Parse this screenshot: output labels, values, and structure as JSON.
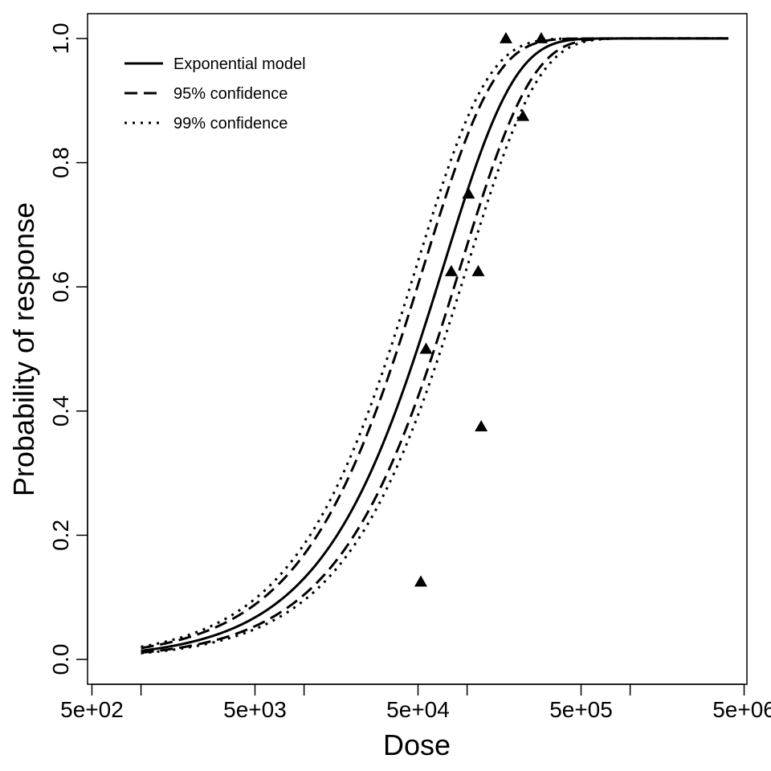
{
  "chart_data": {
    "type": "line",
    "title": "",
    "xlabel": "Dose",
    "ylabel": "Probability of response",
    "xscale": "log",
    "xlim": [
      470,
      5200000
    ],
    "ylim": [
      -0.04,
      1.04
    ],
    "x_ticks": [
      {
        "value": 500,
        "label": "5e+02"
      },
      {
        "value": 5000,
        "label": "5e+03"
      },
      {
        "value": 50000,
        "label": "5e+04"
      },
      {
        "value": 500000,
        "label": "5e+05"
      },
      {
        "value": 5000000,
        "label": "5e+06"
      }
    ],
    "x_minor_ticks": [
      1000,
      10000,
      100000,
      1000000
    ],
    "y_ticks": [
      {
        "value": 0.0,
        "label": "0.0"
      },
      {
        "value": 0.2,
        "label": "0.2"
      },
      {
        "value": 0.4,
        "label": "0.4"
      },
      {
        "value": 0.6,
        "label": "0.6"
      },
      {
        "value": 0.8,
        "label": "0.8"
      },
      {
        "value": 1.0,
        "label": "1.0"
      }
    ],
    "curve_x_range": [
      1000,
      4000000
    ],
    "model": "exponential",
    "series": [
      {
        "name": "Exponential model",
        "style": "solid",
        "k": 1.4e-05
      },
      {
        "name": "95% confidence",
        "style": "dashed",
        "k": 1.85e-05
      },
      {
        "name": "95% confidence",
        "style": "dashed",
        "k": 1.1e-05
      },
      {
        "name": "99% confidence",
        "style": "dotted",
        "k": 2.05e-05
      },
      {
        "name": "99% confidence",
        "style": "dotted",
        "k": 1e-05
      }
    ],
    "observed": {
      "marker": "triangle",
      "points": [
        {
          "x": 52000,
          "y": 0.125
        },
        {
          "x": 56000,
          "y": 0.5
        },
        {
          "x": 80000,
          "y": 0.625
        },
        {
          "x": 102000,
          "y": 0.75
        },
        {
          "x": 117000,
          "y": 0.625
        },
        {
          "x": 122000,
          "y": 0.375
        },
        {
          "x": 173000,
          "y": 1.0
        },
        {
          "x": 220000,
          "y": 0.875
        },
        {
          "x": 285000,
          "y": 1.0
        }
      ]
    },
    "legend": {
      "position": "top-left",
      "entries": [
        {
          "label": "Exponential model",
          "style": "solid"
        },
        {
          "label": "95% confidence",
          "style": "dashed"
        },
        {
          "label": "99% confidence",
          "style": "dotted"
        }
      ]
    },
    "grid": false
  }
}
